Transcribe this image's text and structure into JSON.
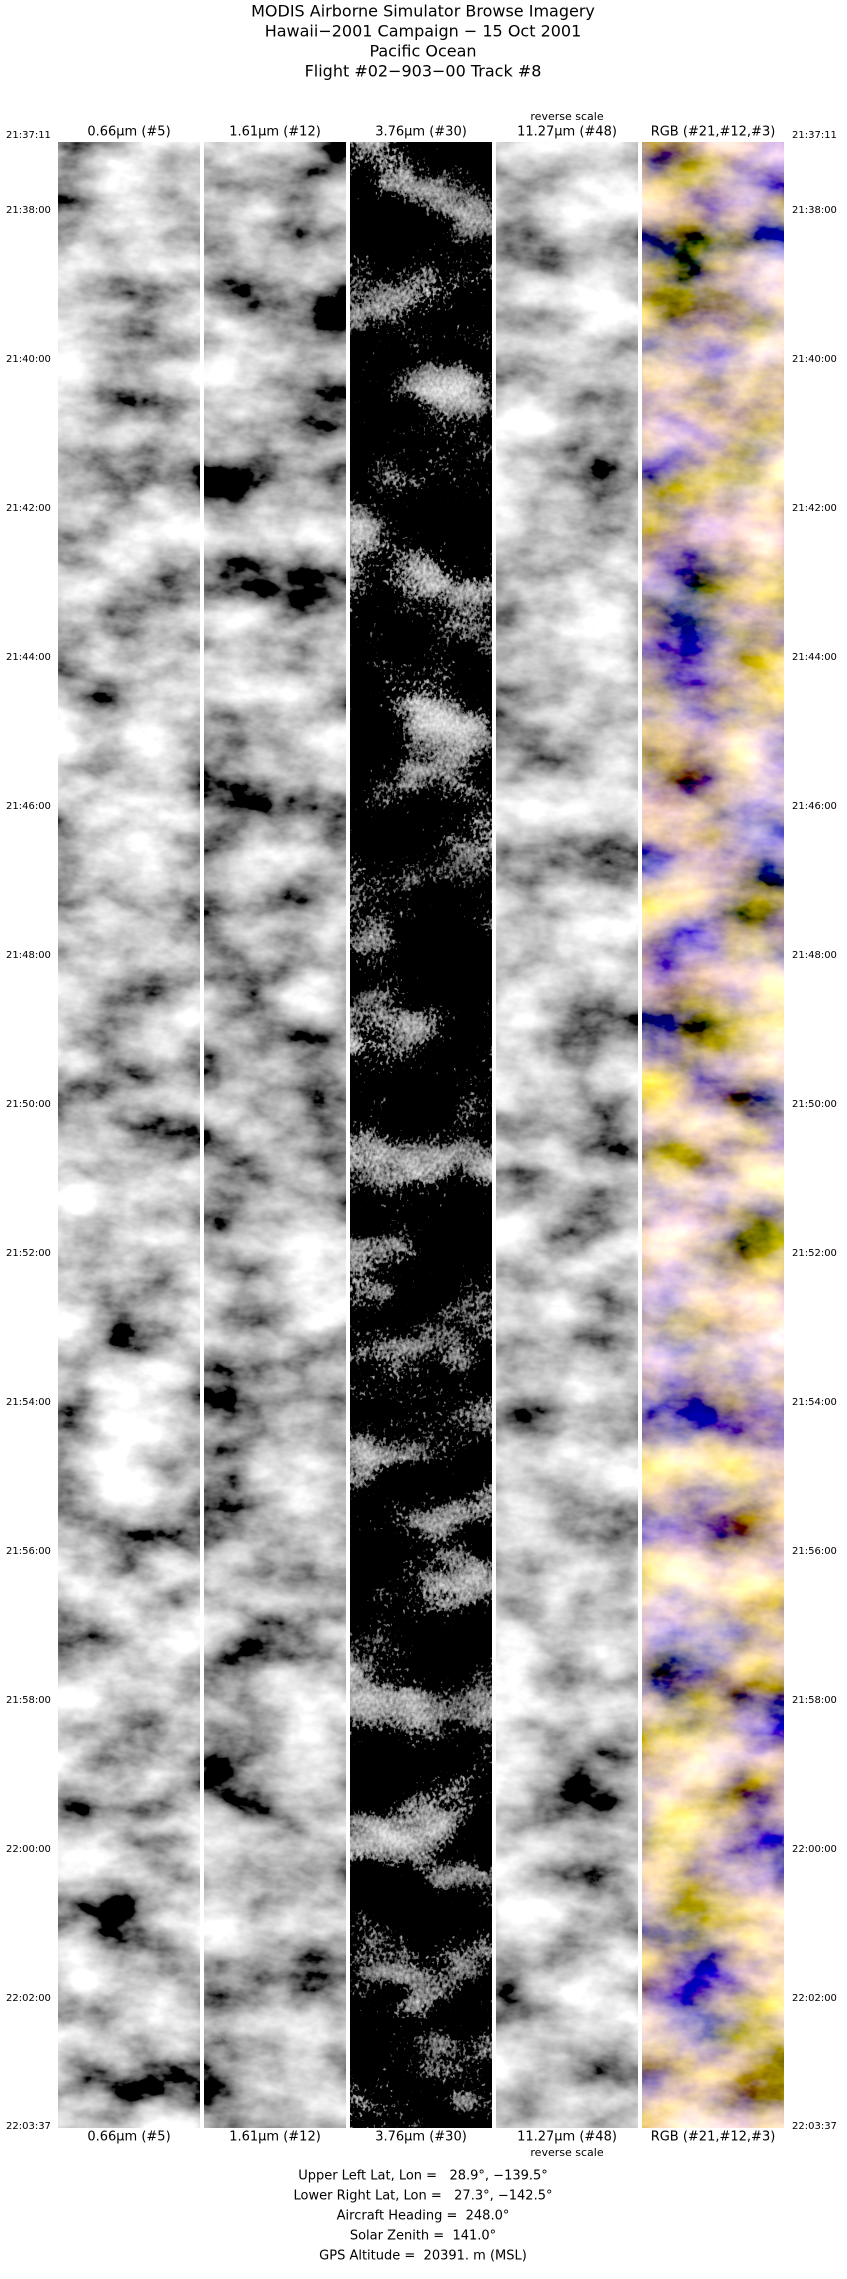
{
  "header": {
    "lines": [
      "MODIS Airborne Simulator Browse Imagery",
      "Hawaii−2001 Campaign − 15 Oct 2001",
      "Pacific Ocean",
      "Flight #02−903−00 Track #8"
    ]
  },
  "panels": [
    {
      "label": "0.66µm (#5)"
    },
    {
      "label": "1.61µm (#12)"
    },
    {
      "label": "3.76µm (#30)"
    },
    {
      "label": "11.27µm (#48)",
      "note": "reverse scale"
    },
    {
      "label": "RGB (#21,#12,#3)"
    }
  ],
  "times": [
    "21:37:11",
    "21:38:00",
    "21:40:00",
    "21:42:00",
    "21:44:00",
    "21:46:00",
    "21:48:00",
    "21:50:00",
    "21:52:00",
    "21:54:00",
    "21:56:00",
    "21:58:00",
    "22:00:00",
    "22:02:00",
    "22:03:37"
  ],
  "footer": {
    "lines": [
      "Upper Left Lat, Lon =   28.9°, −139.5°",
      "Lower Right Lat, Lon =   27.3°, −142.5°",
      "Aircraft Heading =  248.0°",
      "Solar Zenith =  141.0°",
      "GPS Altitude =  20391. m (MSL)"
    ]
  }
}
